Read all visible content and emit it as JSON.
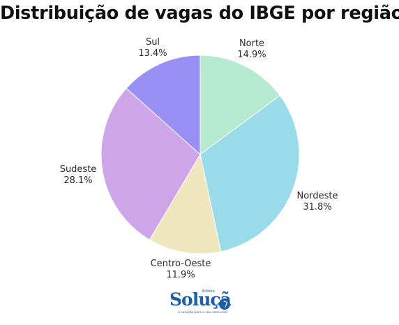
{
  "chart_data": {
    "type": "pie",
    "title": "Distribuição de vagas do IBGE por região",
    "categories": [
      "Norte",
      "Nordeste",
      "Centro-Oeste",
      "Sudeste",
      "Sul"
    ],
    "values": [
      14.9,
      31.8,
      11.9,
      28.1,
      13.4
    ],
    "value_labels": [
      "14.9%",
      "31.8%",
      "11.9%",
      "28.1%",
      "13.4%"
    ],
    "colors": [
      "#b5ead1",
      "#99dbe9",
      "#efe6bd",
      "#cea5e9",
      "#9a8ff4"
    ],
    "start": "top",
    "direction": "clockwise",
    "legend": "none"
  },
  "logo": {
    "main": "Soluçã",
    "top": "Editora",
    "tagline": "a solução para o seu concurso!"
  }
}
